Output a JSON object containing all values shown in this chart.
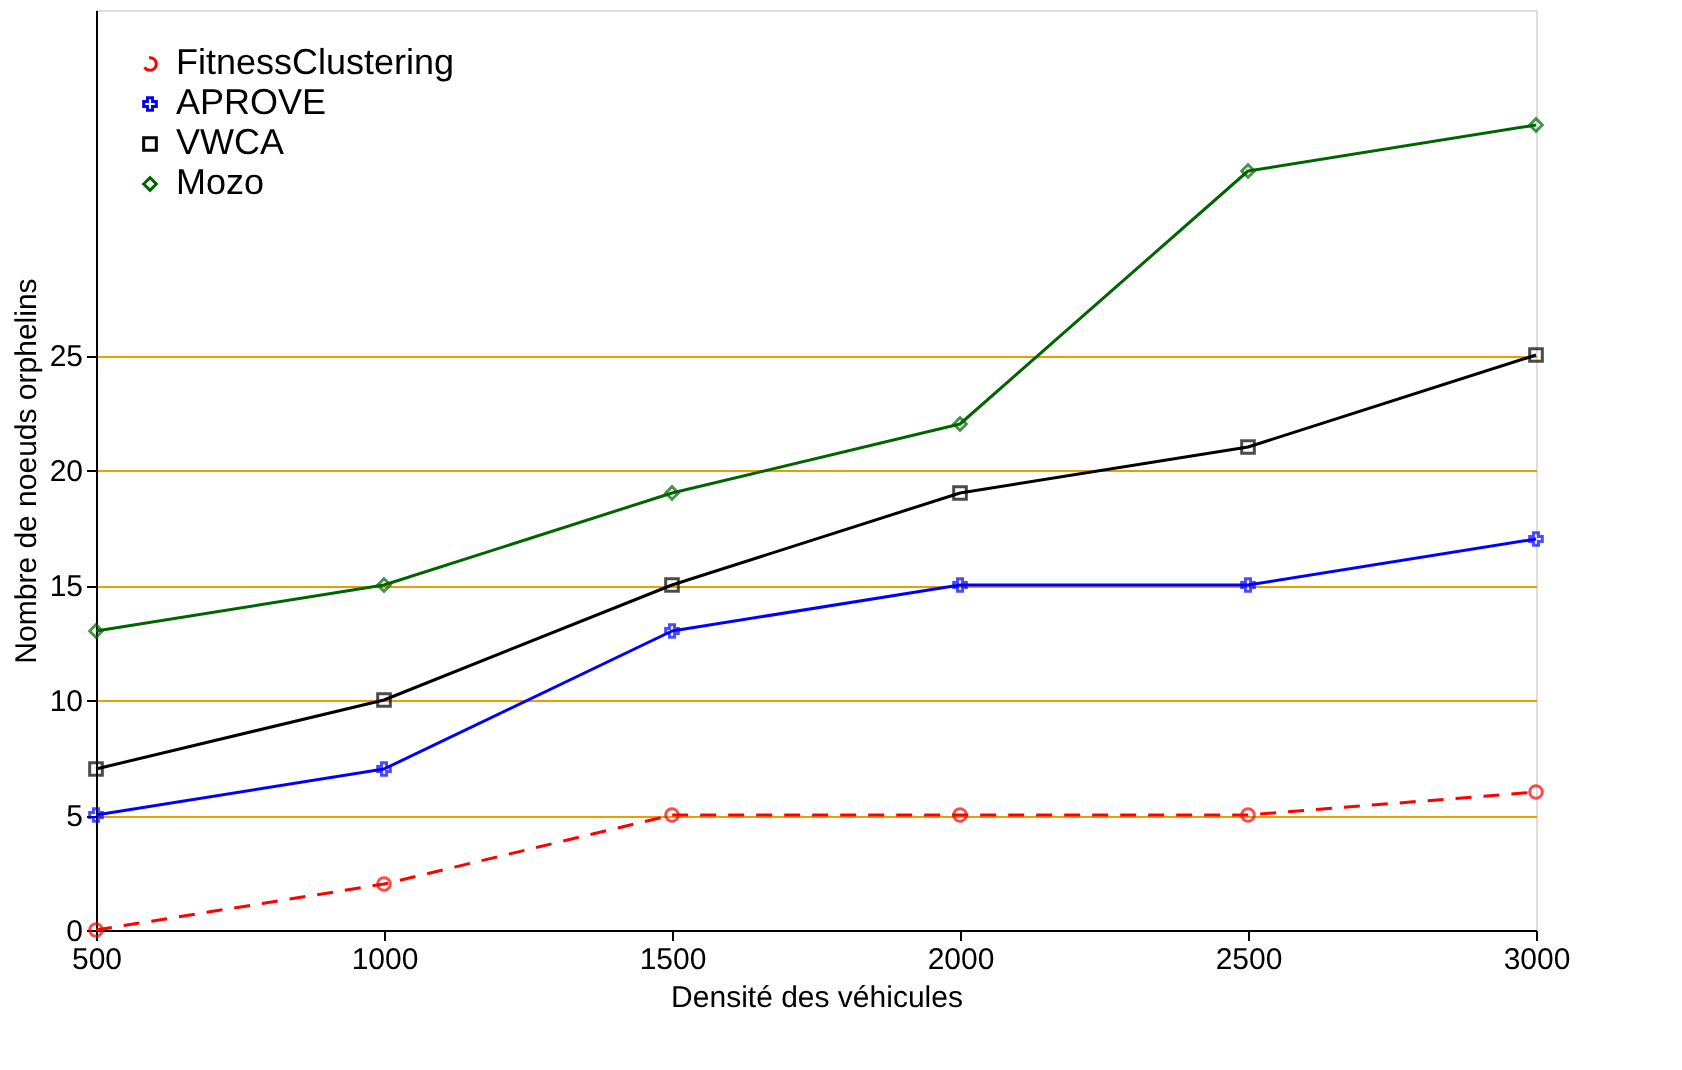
{
  "chart_data": {
    "type": "line",
    "xlabel": "Densité des véhicules",
    "ylabel": "Nombre de noeuds orphelins",
    "x": [
      500,
      1000,
      1500,
      2000,
      2500,
      3000
    ],
    "xlim": [
      500,
      3000
    ],
    "xticks": [
      500,
      1000,
      1500,
      2000,
      2500,
      3000
    ],
    "ylim": [
      0,
      40
    ],
    "yticks": [
      0,
      5,
      10,
      15,
      20,
      25
    ],
    "grid": "y",
    "legend": "top left",
    "series": [
      {
        "name": "FitnessClustering",
        "color": "#ff0000",
        "values": [
          0,
          2,
          5,
          5,
          5,
          6
        ],
        "marker": "circle",
        "line_style": "dashed"
      },
      {
        "name": "APROVE",
        "color": "#0000ff",
        "values": [
          5,
          7,
          13,
          15,
          15,
          17
        ],
        "marker": "cross",
        "line_style": "solid"
      },
      {
        "name": "VWCA",
        "color": "#000000",
        "values": [
          7,
          10,
          15,
          19,
          21,
          25
        ],
        "marker": "square",
        "line_style": "solid"
      },
      {
        "name": "Mozo",
        "color": "#006400",
        "values": [
          13,
          15,
          19,
          22,
          33,
          35
        ],
        "marker": "diamond",
        "line_style": "solid"
      }
    ]
  }
}
